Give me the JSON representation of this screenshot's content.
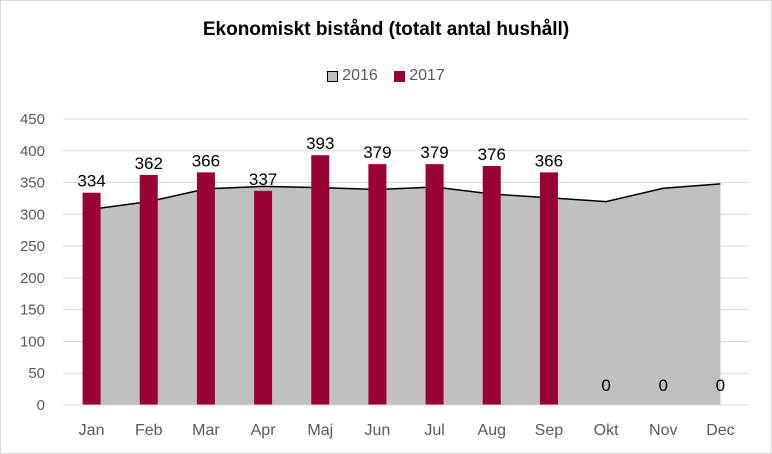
{
  "chart_data": {
    "type": "bar",
    "title": "Ekonomiskt bistånd (totalt antal hushåll)",
    "categories": [
      "Jan",
      "Feb",
      "Mar",
      "Apr",
      "Maj",
      "Jun",
      "Jul",
      "Aug",
      "Sep",
      "Okt",
      "Nov",
      "Dec"
    ],
    "series": [
      {
        "name": "2016",
        "kind": "area",
        "color": "#c0c0c0",
        "values": [
          308,
          320,
          340,
          344,
          342,
          339,
          343,
          332,
          326,
          320,
          341,
          348
        ]
      },
      {
        "name": "2017",
        "kind": "bar",
        "color": "#990033",
        "values": [
          334,
          362,
          366,
          337,
          393,
          379,
          379,
          376,
          366,
          0,
          0,
          0
        ],
        "labels": [
          "334",
          "362",
          "366",
          "337",
          "393",
          "379",
          "379",
          "376",
          "366",
          "0",
          "0",
          "0"
        ]
      }
    ],
    "ylim": [
      0,
      450
    ],
    "yticks": [
      "0",
      "50",
      "100",
      "150",
      "200",
      "250",
      "300",
      "350",
      "400",
      "450"
    ],
    "grid": true,
    "legend_position": "top"
  }
}
